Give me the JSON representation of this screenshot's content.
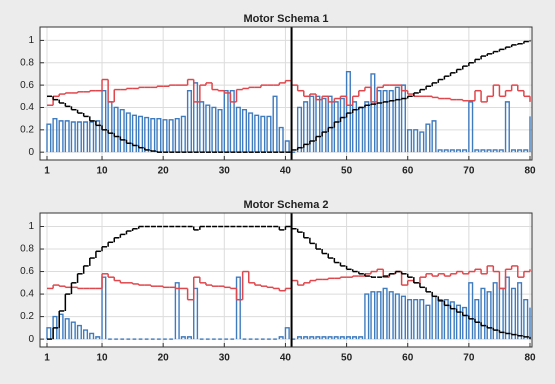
{
  "chart_data": [
    {
      "type": "line",
      "title": "Motor Schema 1",
      "x": [
        1,
        2,
        3,
        4,
        5,
        6,
        7,
        8,
        9,
        10,
        11,
        12,
        13,
        14,
        15,
        16,
        17,
        18,
        19,
        20,
        21,
        22,
        23,
        24,
        25,
        26,
        27,
        28,
        29,
        30,
        31,
        32,
        33,
        34,
        35,
        36,
        37,
        38,
        39,
        40,
        41,
        42,
        43,
        44,
        45,
        46,
        47,
        48,
        49,
        50,
        51,
        52,
        53,
        54,
        55,
        56,
        57,
        58,
        59,
        60,
        61,
        62,
        63,
        64,
        65,
        66,
        67,
        68,
        69,
        70,
        71,
        72,
        73,
        74,
        75,
        76,
        77,
        78,
        79,
        80
      ],
      "xlim": [
        1,
        80
      ],
      "xticks": [
        1,
        10,
        20,
        30,
        40,
        50,
        60,
        70,
        80
      ],
      "ylim": [
        -0.07,
        1.12
      ],
      "yticks": [
        0,
        0.2,
        0.4,
        0.6,
        0.8,
        1
      ],
      "grid": true,
      "vline": 41,
      "series": [
        {
          "color": "#3e7bbf",
          "drawstyle": "pulse",
          "style": "solid",
          "values": [
            0.25,
            0.3,
            0.28,
            0.28,
            0.27,
            0.27,
            0.27,
            0.27,
            0.28,
            0.55,
            0.45,
            0.4,
            0.38,
            0.35,
            0.33,
            0.32,
            0.31,
            0.3,
            0.3,
            0.29,
            0.29,
            0.3,
            0.32,
            0.55,
            0.62,
            0.45,
            0.42,
            0.4,
            0.38,
            0.55,
            0.55,
            0.4,
            0.38,
            0.35,
            0.33,
            0.32,
            0.32,
            0.5,
            0.22,
            0.1,
            0,
            0.4,
            0.45,
            0.5,
            0.5,
            0.48,
            0.5,
            0.45,
            0.48,
            0.72,
            0.45,
            0.4,
            0.45,
            0.7,
            0.55,
            0.55,
            0.55,
            0.58,
            0.6,
            0.2,
            0.2,
            0.18,
            0.25,
            0.28,
            0.02,
            0.02,
            0.02,
            0.02,
            0.02,
            0.45,
            0.02,
            0.02,
            0.02,
            0.02,
            0.02,
            0.45,
            0.02,
            0.02,
            0.02,
            0.32
          ]
        },
        {
          "color": "#e0474c",
          "drawstyle": "steps",
          "style": "solid",
          "values": [
            0.42,
            0.5,
            0.52,
            0.53,
            0.53,
            0.54,
            0.54,
            0.55,
            0.55,
            0.65,
            0.45,
            0.56,
            0.56,
            0.57,
            0.57,
            0.58,
            0.58,
            0.58,
            0.59,
            0.59,
            0.6,
            0.6,
            0.6,
            0.65,
            0.45,
            0.6,
            0.62,
            0.56,
            0.55,
            0.53,
            0.45,
            0.56,
            0.57,
            0.58,
            0.58,
            0.6,
            0.6,
            0.6,
            0.62,
            0.64,
            0.6,
            0.55,
            0.5,
            0.52,
            0.47,
            0.5,
            0.45,
            0.48,
            0.5,
            0.42,
            0.5,
            0.55,
            0.58,
            0.45,
            0.58,
            0.6,
            0.6,
            0.6,
            0.55,
            0.52,
            0.5,
            0.5,
            0.5,
            0.49,
            0.48,
            0.48,
            0.47,
            0.47,
            0.46,
            0.46,
            0.55,
            0.45,
            0.5,
            0.6,
            0.5,
            0.55,
            0.6,
            0.55,
            0.5,
            0.45
          ]
        },
        {
          "color": "#000000",
          "drawstyle": "steps",
          "style": "dashed",
          "values": [
            0.5,
            0.47,
            0.44,
            0.41,
            0.38,
            0.35,
            0.32,
            0.28,
            0.24,
            0.2,
            0.17,
            0.14,
            0.11,
            0.08,
            0.06,
            0.04,
            0.02,
            0.01,
            0,
            0,
            0,
            0,
            0,
            0,
            0,
            0,
            0,
            0,
            0,
            0,
            0,
            0,
            0,
            0,
            0,
            0,
            0,
            0,
            0,
            0,
            0.02,
            0.04,
            0.07,
            0.1,
            0.14,
            0.18,
            0.22,
            0.27,
            0.31,
            0.35,
            0.38,
            0.4,
            0.42,
            0.43,
            0.44,
            0.45,
            0.46,
            0.47,
            0.48,
            0.5,
            0.53,
            0.56,
            0.59,
            0.62,
            0.65,
            0.68,
            0.71,
            0.74,
            0.77,
            0.8,
            0.83,
            0.86,
            0.88,
            0.9,
            0.92,
            0.94,
            0.96,
            0.97,
            0.99,
            1
          ]
        }
      ]
    },
    {
      "type": "line",
      "title": "Motor Schema 2",
      "x": [
        1,
        2,
        3,
        4,
        5,
        6,
        7,
        8,
        9,
        10,
        11,
        12,
        13,
        14,
        15,
        16,
        17,
        18,
        19,
        20,
        21,
        22,
        23,
        24,
        25,
        26,
        27,
        28,
        29,
        30,
        31,
        32,
        33,
        34,
        35,
        36,
        37,
        38,
        39,
        40,
        41,
        42,
        43,
        44,
        45,
        46,
        47,
        48,
        49,
        50,
        51,
        52,
        53,
        54,
        55,
        56,
        57,
        58,
        59,
        60,
        61,
        62,
        63,
        64,
        65,
        66,
        67,
        68,
        69,
        70,
        71,
        72,
        73,
        74,
        75,
        76,
        77,
        78,
        79,
        80
      ],
      "xlim": [
        1,
        80
      ],
      "xticks": [
        1,
        10,
        20,
        30,
        40,
        50,
        60,
        70,
        80
      ],
      "ylim": [
        -0.07,
        1.12
      ],
      "yticks": [
        0,
        0.2,
        0.4,
        0.6,
        0.8,
        1
      ],
      "grid": true,
      "vline": 41,
      "series": [
        {
          "color": "#3e7bbf",
          "drawstyle": "pulse",
          "style": "solid",
          "values": [
            0.1,
            0.2,
            0.22,
            0.18,
            0.15,
            0.12,
            0.08,
            0.05,
            0.02,
            0.55,
            0,
            0,
            0,
            0,
            0,
            0,
            0,
            0,
            0,
            0,
            0,
            0.5,
            0.02,
            0.02,
            0.45,
            0,
            0,
            0,
            0,
            0,
            0,
            0.55,
            0,
            0,
            0,
            0,
            0,
            0,
            0.02,
            0.1,
            0,
            0.02,
            0.02,
            0.02,
            0.02,
            0.02,
            0.02,
            0.02,
            0.02,
            0.02,
            0.02,
            0.02,
            0.4,
            0.42,
            0.42,
            0.45,
            0.42,
            0.4,
            0.38,
            0.35,
            0.35,
            0.35,
            0.3,
            0.38,
            0.35,
            0.35,
            0.33,
            0.3,
            0.28,
            0.5,
            0.35,
            0.45,
            0.42,
            0.5,
            0.45,
            0.55,
            0.45,
            0.5,
            0.35,
            0.28
          ]
        },
        {
          "color": "#e0474c",
          "drawstyle": "steps",
          "style": "solid",
          "values": [
            0.45,
            0.48,
            0.47,
            0.46,
            0.46,
            0.45,
            0.45,
            0.45,
            0.45,
            0.58,
            0.55,
            0.52,
            0.5,
            0.5,
            0.49,
            0.48,
            0.48,
            0.47,
            0.47,
            0.46,
            0.46,
            0.45,
            0.45,
            0.35,
            0.55,
            0.5,
            0.48,
            0.47,
            0.47,
            0.46,
            0.45,
            0.35,
            0.6,
            0.5,
            0.48,
            0.47,
            0.46,
            0.45,
            0.43,
            0.45,
            0.52,
            0.48,
            0.5,
            0.52,
            0.53,
            0.53,
            0.54,
            0.54,
            0.55,
            0.55,
            0.56,
            0.56,
            0.58,
            0.6,
            0.62,
            0.55,
            0.58,
            0.6,
            0.48,
            0.52,
            0.5,
            0.55,
            0.58,
            0.56,
            0.58,
            0.56,
            0.58,
            0.6,
            0.58,
            0.6,
            0.62,
            0.58,
            0.65,
            0.6,
            0.45,
            0.62,
            0.65,
            0.55,
            0.6,
            0.62
          ]
        },
        {
          "color": "#000000",
          "drawstyle": "steps",
          "style": "dashed",
          "values": [
            0,
            0.1,
            0.25,
            0.4,
            0.5,
            0.58,
            0.65,
            0.72,
            0.78,
            0.82,
            0.86,
            0.9,
            0.93,
            0.96,
            0.98,
            1,
            1,
            1,
            1,
            1,
            1,
            1,
            1,
            1,
            0.97,
            1,
            1,
            1,
            1,
            1,
            1,
            1,
            1,
            1,
            1,
            1,
            1,
            1,
            0.97,
            1,
            0.98,
            0.95,
            0.9,
            0.85,
            0.8,
            0.76,
            0.72,
            0.68,
            0.65,
            0.62,
            0.6,
            0.58,
            0.56,
            0.55,
            0.55,
            0.56,
            0.58,
            0.6,
            0.58,
            0.55,
            0.5,
            0.46,
            0.42,
            0.38,
            0.34,
            0.3,
            0.27,
            0.24,
            0.21,
            0.18,
            0.15,
            0.12,
            0.1,
            0.08,
            0.06,
            0.05,
            0.04,
            0.03,
            0.02,
            0
          ]
        }
      ]
    }
  ]
}
